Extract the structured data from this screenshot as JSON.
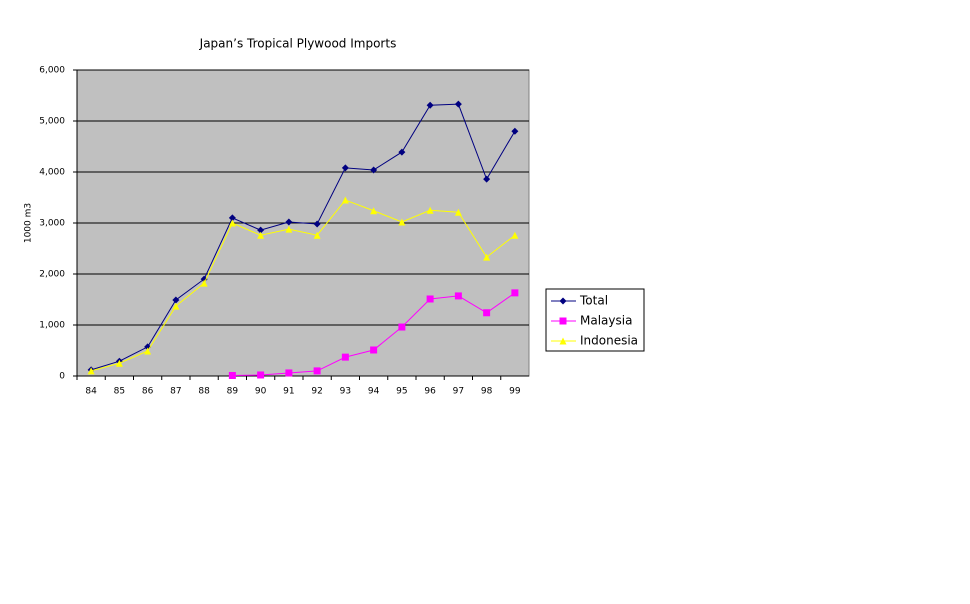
{
  "chart_data": {
    "type": "line",
    "title": "Japan’s Tropical Plywood Imports",
    "y_label": "1000 m3",
    "categories": [
      "84",
      "85",
      "86",
      "87",
      "88",
      "89",
      "90",
      "91",
      "92",
      "93",
      "94",
      "95",
      "96",
      "97",
      "98",
      "99"
    ],
    "series": [
      {
        "name": "Total",
        "color": "#000080",
        "marker": "diamond",
        "values": [
          120,
          290,
          570,
          1490,
          1900,
          3100,
          2860,
          3020,
          2980,
          4080,
          4040,
          4390,
          5310,
          5330,
          3860,
          4800
        ]
      },
      {
        "name": "Malaysia",
        "color": "#ff00ff",
        "marker": "square",
        "values": [
          null,
          null,
          null,
          null,
          null,
          10,
          20,
          60,
          100,
          370,
          510,
          960,
          1510,
          1570,
          1240,
          1630
        ]
      },
      {
        "name": "Indonesia",
        "color": "#ffff00",
        "marker": "triangle",
        "values": [
          100,
          250,
          490,
          1370,
          1820,
          3000,
          2760,
          2880,
          2760,
          3450,
          3240,
          3020,
          3250,
          3210,
          2330,
          2760
        ]
      }
    ],
    "ylim": [
      0,
      6000
    ],
    "yticks": [
      0,
      {
        "value": 1000,
        "label": "1,000"
      },
      {
        "value": 2000,
        "label": "2,000"
      },
      {
        "value": 3000,
        "label": "3,000"
      },
      {
        "value": 4000,
        "label": "4,000"
      },
      {
        "value": 5000,
        "label": "5,000"
      },
      {
        "value": 6000,
        "label": "6,000"
      }
    ],
    "grid": true,
    "plot_background": "#c0c0c0",
    "legend": "right"
  }
}
